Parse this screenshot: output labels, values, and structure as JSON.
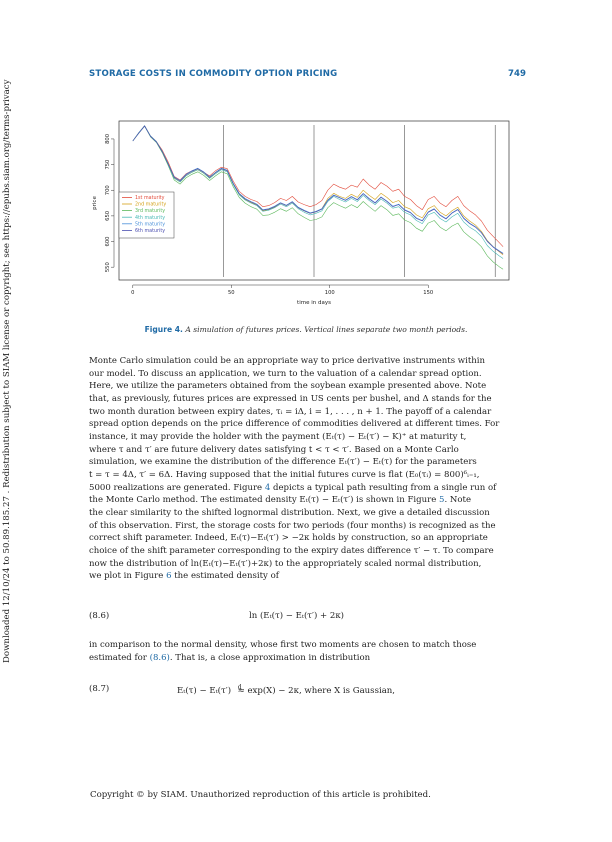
{
  "header": {
    "title": "STORAGE COSTS IN COMMODITY OPTION PRICING",
    "page_number": "749"
  },
  "sidebar_text": "Downloaded 12/10/24 to 50.89.185.27 . Redistribution subject to SIAM license or copyright; see https://epubs.siam.org/terms-privacy",
  "figure": {
    "label": "Figure 4.",
    "caption": "A simulation of futures prices. Vertical lines separate two month periods."
  },
  "chart_data": {
    "type": "line",
    "xlabel": "time in days",
    "ylabel": "price",
    "xlim": [
      -7,
      191
    ],
    "ylim": [
      525,
      835
    ],
    "xticks": [
      "0",
      "50",
      "100",
      "150"
    ],
    "xtick_values": [
      0,
      50,
      100,
      150
    ],
    "yticks": [
      "550",
      "600",
      "650",
      "700",
      "750",
      "800"
    ],
    "ytick_values": [
      550,
      600,
      650,
      700,
      750,
      800
    ],
    "vertical_lines": [
      46,
      92,
      138,
      184
    ],
    "legend_position": "left",
    "series": [
      {
        "name": "1st maturity",
        "color": "#e24b3b",
        "x": [
          0,
          3,
          6,
          9,
          12,
          15,
          18,
          21,
          24,
          27,
          30,
          33,
          36,
          39,
          42,
          45,
          48,
          51,
          54,
          57,
          60,
          63,
          66,
          69,
          72,
          75,
          78,
          81,
          84,
          87,
          90,
          93,
          96,
          99,
          102,
          105,
          108,
          111,
          114,
          117,
          120,
          123,
          126,
          129,
          132,
          135,
          138,
          141,
          144,
          147,
          150,
          153,
          156,
          159,
          162,
          165,
          168,
          171,
          174,
          177,
          180,
          183,
          186,
          188
        ],
        "values": [
          796,
          812,
          825,
          805,
          795,
          778,
          755,
          727,
          720,
          732,
          738,
          742,
          735,
          728,
          738,
          745,
          742,
          718,
          698,
          688,
          682,
          678,
          668,
          670,
          676,
          684,
          680,
          688,
          677,
          672,
          668,
          672,
          680,
          700,
          712,
          706,
          702,
          710,
          706,
          722,
          710,
          702,
          715,
          708,
          698,
          702,
          688,
          682,
          670,
          662,
          682,
          688,
          675,
          668,
          680,
          688,
          670,
          660,
          652,
          640,
          622,
          610,
          598,
          590
        ]
      },
      {
        "name": "2nd maturity",
        "color": "#d4a017",
        "x": [
          0,
          3,
          6,
          9,
          12,
          15,
          18,
          21,
          24,
          27,
          30,
          33,
          36,
          39,
          42,
          45,
          48,
          51,
          54,
          57,
          60,
          63,
          66,
          69,
          72,
          75,
          78,
          81,
          84,
          87,
          90,
          93,
          96,
          99,
          102,
          105,
          108,
          111,
          114,
          117,
          120,
          123,
          126,
          129,
          132,
          135,
          138,
          141,
          144,
          147,
          150,
          153,
          156,
          159,
          162,
          165,
          168,
          171,
          174,
          177,
          180,
          183,
          186,
          188
        ],
        "values": [
          796,
          812,
          826,
          806,
          795,
          776,
          752,
          724,
          716,
          728,
          735,
          740,
          733,
          724,
          734,
          742,
          738,
          713,
          692,
          682,
          676,
          671,
          660,
          662,
          667,
          675,
          670,
          677,
          666,
          660,
          655,
          658,
          664,
          684,
          694,
          688,
          684,
          692,
          686,
          700,
          690,
          682,
          694,
          686,
          676,
          680,
          668,
          663,
          652,
          646,
          664,
          670,
          657,
          650,
          660,
          667,
          650,
          640,
          632,
          620,
          602,
          590,
          580,
          574
        ]
      },
      {
        "name": "3rd maturity",
        "color": "#5cb85c",
        "x": [
          0,
          3,
          6,
          9,
          12,
          15,
          18,
          21,
          24,
          27,
          30,
          33,
          36,
          39,
          42,
          45,
          48,
          51,
          54,
          57,
          60,
          63,
          66,
          69,
          72,
          75,
          78,
          81,
          84,
          87,
          90,
          93,
          96,
          99,
          102,
          105,
          108,
          111,
          114,
          117,
          120,
          123,
          126,
          129,
          132,
          135,
          138,
          141,
          144,
          147,
          150,
          153,
          156,
          159,
          162,
          165,
          168,
          171,
          174,
          177,
          180,
          183,
          186,
          188
        ],
        "values": [
          796,
          811,
          825,
          804,
          793,
          773,
          748,
          720,
          712,
          724,
          731,
          736,
          729,
          719,
          728,
          736,
          732,
          707,
          686,
          675,
          668,
          663,
          651,
          652,
          657,
          664,
          659,
          666,
          654,
          647,
          641,
          643,
          648,
          666,
          676,
          670,
          665,
          672,
          666,
          678,
          668,
          659,
          670,
          662,
          651,
          654,
          642,
          637,
          626,
          620,
          636,
          641,
          628,
          621,
          630,
          636,
          619,
          609,
          601,
          590,
          572,
          560,
          551,
          546
        ]
      },
      {
        "name": "4th maturity",
        "color": "#47b8b5",
        "x": [
          0,
          3,
          6,
          9,
          12,
          15,
          18,
          21,
          24,
          27,
          30,
          33,
          36,
          39,
          42,
          45,
          48,
          51,
          54,
          57,
          60,
          63,
          66,
          69,
          72,
          75,
          78,
          81,
          84,
          87,
          90,
          93,
          96,
          99,
          102,
          105,
          108,
          111,
          114,
          117,
          120,
          123,
          126,
          129,
          132,
          135,
          138,
          141,
          144,
          147,
          150,
          153,
          156,
          159,
          162,
          165,
          168,
          171,
          174,
          177,
          180,
          183,
          186,
          188
        ],
        "values": [
          796,
          812,
          825,
          805,
          794,
          775,
          750,
          723,
          716,
          728,
          735,
          740,
          733,
          723,
          732,
          740,
          736,
          711,
          691,
          681,
          675,
          670,
          659,
          661,
          666,
          673,
          668,
          675,
          664,
          657,
          652,
          655,
          660,
          678,
          688,
          682,
          677,
          684,
          678,
          690,
          680,
          672,
          683,
          675,
          665,
          668,
          657,
          652,
          641,
          635,
          652,
          657,
          645,
          638,
          648,
          655,
          638,
          628,
          621,
          610,
          592,
          581,
          572,
          567
        ]
      },
      {
        "name": "5th maturity",
        "color": "#4a90d9",
        "x": [
          0,
          3,
          6,
          9,
          12,
          15,
          18,
          21,
          24,
          27,
          30,
          33,
          36,
          39,
          42,
          45,
          48,
          51,
          54,
          57,
          60,
          63,
          66,
          69,
          72,
          75,
          78,
          81,
          84,
          87,
          90,
          93,
          96,
          99,
          102,
          105,
          108,
          111,
          114,
          117,
          120,
          123,
          126,
          129,
          132,
          135,
          138,
          141,
          144,
          147,
          150,
          153,
          156,
          159,
          162,
          165,
          168,
          171,
          174,
          177,
          180,
          183,
          186,
          188
        ],
        "values": [
          796,
          812,
          826,
          806,
          795,
          776,
          752,
          726,
          719,
          731,
          738,
          743,
          736,
          726,
          735,
          743,
          739,
          714,
          694,
          684,
          678,
          673,
          662,
          664,
          669,
          676,
          671,
          678,
          667,
          661,
          656,
          659,
          664,
          681,
          691,
          686,
          681,
          688,
          682,
          694,
          684,
          676,
          687,
          679,
          669,
          673,
          662,
          657,
          646,
          641,
          658,
          664,
          652,
          645,
          656,
          663,
          646,
          636,
          629,
          618,
          601,
          590,
          582,
          577
        ]
      },
      {
        "name": "6th maturity",
        "color": "#4b4fb0",
        "x": [
          0,
          3,
          6,
          9,
          12,
          15,
          18,
          21,
          24,
          27,
          30,
          33,
          36,
          39,
          42,
          45,
          48,
          51,
          54,
          57,
          60,
          63,
          66,
          69,
          72,
          75,
          78,
          81,
          84,
          87,
          90,
          93,
          96,
          99,
          102,
          105,
          108,
          111,
          114,
          117,
          120,
          123,
          126,
          129,
          132,
          135,
          138,
          141,
          144,
          147,
          150,
          153,
          156,
          159,
          162,
          165,
          168,
          171,
          174,
          177,
          180,
          183,
          186,
          188
        ],
        "values": [
          796,
          811,
          825,
          805,
          794,
          775,
          751,
          725,
          718,
          730,
          737,
          742,
          735,
          725,
          734,
          742,
          738,
          713,
          693,
          683,
          677,
          672,
          661,
          663,
          668,
          675,
          670,
          677,
          666,
          660,
          655,
          658,
          663,
          680,
          690,
          685,
          680,
          687,
          681,
          693,
          683,
          675,
          686,
          678,
          668,
          672,
          661,
          656,
          645,
          640,
          657,
          663,
          651,
          644,
          655,
          662,
          645,
          635,
          628,
          617,
          600,
          589,
          581,
          576
        ]
      }
    ]
  },
  "body": {
    "p1_l1": "Monte Carlo simulation could be an appropriate way to price derivative instruments within",
    "p1_l2": "our model. To discuss an application, we turn to the valuation of a calendar spread option.",
    "p1_l3": "Here, we utilize the parameters obtained from the soybean example presented above. Note",
    "p1_l4": "that, as previously, futures prices are expressed in US cents per bushel, and Δ stands for the",
    "p1_l5": "two month duration between expiry dates, τᵢ = iΔ, i = 1, . . . , n + 1. The payoff of a calendar",
    "p1_l6": "spread option depends on the price difference of commodities delivered at different times. For",
    "p1_l7": "instance, it may provide the holder with the payment (Eₜ(τ) − Eₜ(τ′) − K)⁺ at maturity t,",
    "p1_l8": "where τ and τ′ are future delivery dates satisfying t < τ < τ′. Based on a Monte Carlo",
    "p1_l9": "simulation, we examine the distribution of the difference Eₜ(τ′) − Eₜ(τ) for the parameters",
    "p1_l10": "t = τ = 4Δ, τ′ = 6Δ. Having supposed that the initial futures curve is flat (E₀(τᵢ) = 800)⁶ᵢ₌₁,",
    "p1_l11a": "5000 realizations are generated. Figure ",
    "p1_l11ref": "4",
    "p1_l11b": " depicts a typical path resulting from a single run of",
    "p1_l12a": "the Monte Carlo method. The estimated density Eₜ(τ) − Eₜ(τ′) is shown in Figure ",
    "p1_l12ref": "5",
    "p1_l12b": ". Note",
    "p1_l13": "the clear similarity to the shifted lognormal distribution. Next, we give a detailed discussion",
    "p1_l14": "of this observation. First, the storage costs for two periods (four months) is recognized as the",
    "p1_l15": "correct shift parameter. Indeed, Eₜ(τ)−Eₜ(τ′) > −2κ holds by construction, so an appropriate",
    "p1_l16": "choice of the shift parameter corresponding to the expiry dates difference τ′ − τ. To compare",
    "p1_l17": "now the distribution of ln(Eₜ(τ)−Eₜ(τ′)+2κ) to the appropriately scaled normal distribution,",
    "p1_l18a": "we plot in Figure ",
    "p1_l18ref": "6",
    "p1_l18b": " the estimated density of",
    "eq86_num": "(8.6)",
    "eq86_body": "ln (Eₜ(τ) − Eₜ(τ′) + 2κ)",
    "p2_l1": "in comparison to the normal density, whose first two moments are chosen to match those",
    "p2_l2a": "estimated for ",
    "p2_l2ref": "(8.6)",
    "p2_l2b": ". That is, a close approximation in distribution",
    "eq87_num": "(8.7)",
    "eq87_lhs": "Eₜ(τ) − Eₜ(τ′) ",
    "eq87_sym": "d",
    "eq87_rhs": "≈ exp(X) − 2κ,    where X is Gaussian,"
  },
  "footer": "Copyright © by SIAM. Unauthorized reproduction of this article is prohibited."
}
